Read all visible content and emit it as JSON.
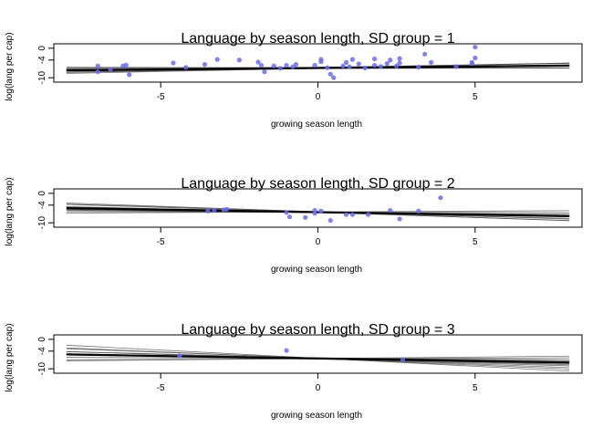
{
  "chart_data": [
    {
      "type": "scatter",
      "title": "Language by season length, SD group = 1",
      "xlabel": "growing season length",
      "ylabel": "log(lang per cap)",
      "xlim": [
        -8.4,
        8.4
      ],
      "ylim": [
        -11.5,
        1.5
      ],
      "xticks": [
        -5,
        0,
        5
      ],
      "yticks": [
        0,
        -4,
        -10
      ],
      "grid": false,
      "colors": {
        "points": "#6b6bf0",
        "lines": "#444444",
        "mean_line": "#000000"
      },
      "fit": {
        "intercept": -6.7,
        "slope": 0.1,
        "band_lines": [
          {
            "intercept": -6.5,
            "slope": 0.17
          },
          {
            "intercept": -6.5,
            "slope": 0.05
          },
          {
            "intercept": -6.8,
            "slope": 0.12
          },
          {
            "intercept": -6.9,
            "slope": 0.03
          },
          {
            "intercept": -6.6,
            "slope": 0.2
          },
          {
            "intercept": -6.7,
            "slope": 0.0
          },
          {
            "intercept": -6.9,
            "slope": 0.16
          },
          {
            "intercept": -6.5,
            "slope": 0.09
          },
          {
            "intercept": -6.6,
            "slope": -0.02
          },
          {
            "intercept": -6.8,
            "slope": 0.22
          }
        ]
      },
      "points": [
        {
          "x": -7.0,
          "y": -6.0
        },
        {
          "x": -7.0,
          "y": -8.0
        },
        {
          "x": -6.6,
          "y": -7.2
        },
        {
          "x": -6.2,
          "y": -6.0
        },
        {
          "x": -6.1,
          "y": -5.7
        },
        {
          "x": -6.0,
          "y": -9.0
        },
        {
          "x": -4.6,
          "y": -5.0
        },
        {
          "x": -4.2,
          "y": -6.5
        },
        {
          "x": -3.6,
          "y": -5.5
        },
        {
          "x": -3.2,
          "y": -3.8
        },
        {
          "x": -2.5,
          "y": -4.0
        },
        {
          "x": -1.9,
          "y": -4.7
        },
        {
          "x": -1.8,
          "y": -5.8
        },
        {
          "x": -1.7,
          "y": -8.0
        },
        {
          "x": -1.4,
          "y": -6.0
        },
        {
          "x": -1.2,
          "y": -6.8
        },
        {
          "x": -1.0,
          "y": -5.8
        },
        {
          "x": -0.8,
          "y": -6.3
        },
        {
          "x": -0.7,
          "y": -5.5
        },
        {
          "x": -0.1,
          "y": -5.8
        },
        {
          "x": 0.1,
          "y": -3.8
        },
        {
          "x": 0.1,
          "y": -4.6
        },
        {
          "x": 0.3,
          "y": -6.6
        },
        {
          "x": 0.4,
          "y": -8.8
        },
        {
          "x": 0.5,
          "y": -10.0
        },
        {
          "x": 0.8,
          "y": -6.0
        },
        {
          "x": 0.9,
          "y": -4.8
        },
        {
          "x": 1.0,
          "y": -6.3
        },
        {
          "x": 1.1,
          "y": -3.8
        },
        {
          "x": 1.3,
          "y": -5.3
        },
        {
          "x": 1.5,
          "y": -6.7
        },
        {
          "x": 1.8,
          "y": -5.8
        },
        {
          "x": 1.8,
          "y": -3.6
        },
        {
          "x": 2.0,
          "y": -6.2
        },
        {
          "x": 2.2,
          "y": -5.2
        },
        {
          "x": 2.3,
          "y": -4.0
        },
        {
          "x": 2.5,
          "y": -6.0
        },
        {
          "x": 2.6,
          "y": -5.0
        },
        {
          "x": 2.6,
          "y": -3.5
        },
        {
          "x": 3.2,
          "y": -6.4
        },
        {
          "x": 3.4,
          "y": -2.0
        },
        {
          "x": 3.6,
          "y": -4.8
        },
        {
          "x": 4.4,
          "y": -6.2
        },
        {
          "x": 4.9,
          "y": -5.2
        },
        {
          "x": 4.9,
          "y": -4.8
        },
        {
          "x": 5.0,
          "y": -3.3
        },
        {
          "x": 5.0,
          "y": 0.4
        }
      ]
    },
    {
      "type": "scatter",
      "title": "Language by season length, SD group = 2",
      "xlabel": "growing season length",
      "ylabel": "log(lang per cap)",
      "xlim": [
        -8.4,
        8.4
      ],
      "ylim": [
        -11.5,
        1.5
      ],
      "xticks": [
        -5,
        0,
        5
      ],
      "yticks": [
        0,
        -4,
        -10
      ],
      "grid": false,
      "colors": {
        "points": "#6b6bf0",
        "lines": "#444444",
        "mean_line": "#000000"
      },
      "fit": {
        "intercept": -6.4,
        "slope": -0.17,
        "band_lines": [
          {
            "intercept": -6.3,
            "slope": -0.38
          },
          {
            "intercept": -6.3,
            "slope": 0.05
          },
          {
            "intercept": -6.5,
            "slope": -0.25
          },
          {
            "intercept": -6.5,
            "slope": -0.08
          },
          {
            "intercept": -6.2,
            "slope": -0.32
          },
          {
            "intercept": -6.6,
            "slope": -0.14
          },
          {
            "intercept": -6.4,
            "slope": -0.02
          },
          {
            "intercept": -6.3,
            "slope": -0.2
          },
          {
            "intercept": -6.5,
            "slope": -0.34
          },
          {
            "intercept": -6.4,
            "slope": -0.1
          }
        ]
      },
      "points": [
        {
          "x": -3.5,
          "y": -6.0
        },
        {
          "x": -3.3,
          "y": -5.8
        },
        {
          "x": -3.0,
          "y": -5.6
        },
        {
          "x": -2.9,
          "y": -5.4
        },
        {
          "x": -1.0,
          "y": -6.5
        },
        {
          "x": -0.9,
          "y": -8.0
        },
        {
          "x": -0.4,
          "y": -8.2
        },
        {
          "x": -0.1,
          "y": -6.8
        },
        {
          "x": -0.1,
          "y": -5.8
        },
        {
          "x": 0.1,
          "y": -6.0
        },
        {
          "x": 0.4,
          "y": -9.2
        },
        {
          "x": 0.9,
          "y": -7.2
        },
        {
          "x": 1.1,
          "y": -7.2
        },
        {
          "x": 1.6,
          "y": -7.2
        },
        {
          "x": 2.3,
          "y": -5.8
        },
        {
          "x": 2.6,
          "y": -8.7
        },
        {
          "x": 3.2,
          "y": -6.0
        },
        {
          "x": 3.9,
          "y": -1.5
        }
      ]
    },
    {
      "type": "scatter",
      "title": "Language by season length, SD group = 3",
      "xlabel": "growing season length",
      "ylabel": "log(lang per cap)",
      "xlim": [
        -8.4,
        8.4
      ],
      "ylim": [
        -11.5,
        1.5
      ],
      "xticks": [
        -5,
        0,
        5
      ],
      "yticks": [
        0,
        -4,
        -10
      ],
      "grid": false,
      "colors": {
        "points": "#6b6bf0",
        "lines": "#444444",
        "mean_line": "#000000"
      },
      "fit": {
        "intercept": -6.5,
        "slope": -0.17,
        "band_lines": [
          {
            "intercept": -6.4,
            "slope": -0.55
          },
          {
            "intercept": -6.5,
            "slope": 0.1
          },
          {
            "intercept": -6.6,
            "slope": -0.3
          },
          {
            "intercept": -6.4,
            "slope": -0.4
          },
          {
            "intercept": -6.5,
            "slope": -0.05
          },
          {
            "intercept": -6.6,
            "slope": -0.22
          },
          {
            "intercept": -6.3,
            "slope": -0.12
          },
          {
            "intercept": -6.6,
            "slope": 0.04
          },
          {
            "intercept": -6.4,
            "slope": -0.28
          },
          {
            "intercept": -6.5,
            "slope": -0.45
          }
        ]
      },
      "points": [
        {
          "x": -4.4,
          "y": -5.6
        },
        {
          "x": -1.0,
          "y": -3.8
        },
        {
          "x": 2.7,
          "y": -7.0
        }
      ]
    }
  ]
}
